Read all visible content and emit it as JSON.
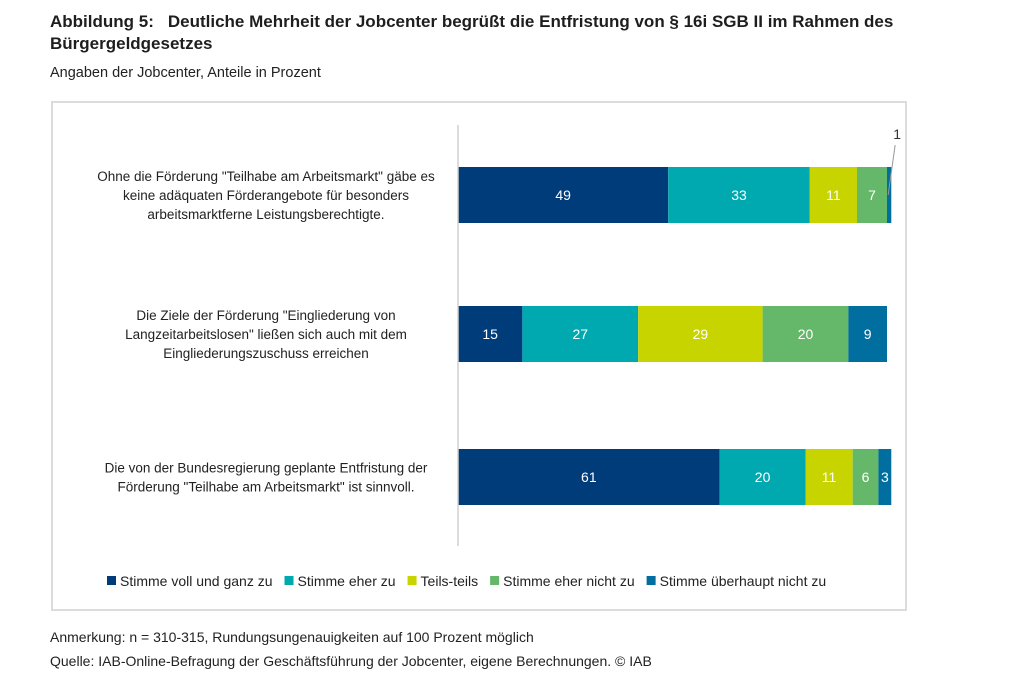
{
  "figure": {
    "number": "Abbildung 5:",
    "title": "Deutliche Mehrheit der Jobcenter begrüßt die Entfristung von § 16i SGB II im Rahmen des Bürgergeldgesetzes",
    "subtitle": "Angaben der Jobcenter, Anteile in Prozent",
    "note": "Anmerkung: n = 310-315, Rundungsungenauigkeiten auf 100 Prozent möglich",
    "source": "Quelle: IAB-Online-Befragung der Geschäftsführung der Jobcenter, eigene Berechnungen. © IAB"
  },
  "chart_data": {
    "type": "bar",
    "orientation": "horizontal",
    "stacked": true,
    "title": "Deutliche Mehrheit der Jobcenter begrüßt die Entfristung von § 16i SGB II im Rahmen des Bürgergeldgesetzes",
    "xlabel": "",
    "ylabel": "",
    "xlim": [
      0,
      100
    ],
    "grid": false,
    "legend_position": "bottom",
    "categories": [
      [
        "Ohne die Förderung \"Teilhabe am Arbeitsmarkt\" gäbe es",
        "keine adäquaten Förderangebote für besonders",
        "arbeitsmarktferne Leistungsberechtigte."
      ],
      [
        "Die Ziele der Förderung \"Eingliederung von",
        "Langzeitarbeitslosen\" ließen sich auch mit dem",
        "Eingliederungszuschuss erreichen"
      ],
      [
        "Die von der Bundesregierung geplante Entfristung der",
        "Förderung \"Teilhabe am Arbeitsmarkt\" ist sinnvoll."
      ]
    ],
    "series": [
      {
        "name": "Stimme voll und ganz zu",
        "color": "#003b7a",
        "values": [
          49,
          15,
          61
        ]
      },
      {
        "name": "Stimme eher zu",
        "color": "#00a9b0",
        "values": [
          33,
          27,
          20
        ]
      },
      {
        "name": "Teils-teils",
        "color": "#c8d400",
        "values": [
          11,
          29,
          11
        ]
      },
      {
        "name": "Stimme eher nicht zu",
        "color": "#65b76a",
        "values": [
          7,
          20,
          6
        ]
      },
      {
        "name": "Stimme überhaupt nicht zu",
        "color": "#006e9e",
        "values": [
          1,
          9,
          3
        ]
      }
    ],
    "callouts": [
      {
        "category_index": 0,
        "series_index": 4,
        "label": "1"
      }
    ]
  }
}
